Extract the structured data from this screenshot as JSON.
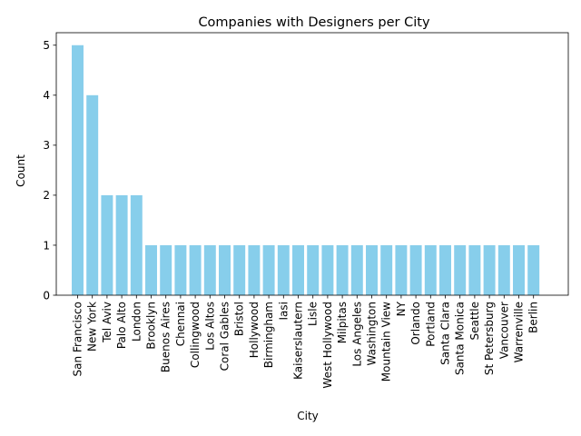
{
  "chart_data": {
    "type": "bar",
    "title": "Companies with Designers per City",
    "xlabel": "City",
    "ylabel": "Count",
    "categories": [
      "San Francisco",
      "New York",
      "Tel Aviv",
      "Palo Alto",
      "London",
      "Brooklyn",
      "Buenos Aires",
      "Chennai",
      "Collingwood",
      "Los Altos",
      "Coral Gables",
      "Bristol",
      "Hollywood",
      "Birmingham",
      "Iasi",
      "Kaiserslautern",
      "Lisle",
      "West Hollywood",
      "Milpitas",
      "Los Angeles",
      "Washington",
      "Mountain View",
      "NY",
      "Orlando",
      "Portland",
      "Santa Clara",
      "Santa Monica",
      "Seattle",
      "St Petersburg",
      "Vancouver",
      "Warrenville",
      "Berlin"
    ],
    "values": [
      5,
      4,
      2,
      2,
      2,
      1,
      1,
      1,
      1,
      1,
      1,
      1,
      1,
      1,
      1,
      1,
      1,
      1,
      1,
      1,
      1,
      1,
      1,
      1,
      1,
      1,
      1,
      1,
      1,
      1,
      1,
      1
    ],
    "yticks": [
      "0",
      "1",
      "2",
      "3",
      "4",
      "5"
    ],
    "ylim": [
      0,
      5.25
    ],
    "bar_color": "#87ceeb",
    "grid": false,
    "legend": "none"
  }
}
